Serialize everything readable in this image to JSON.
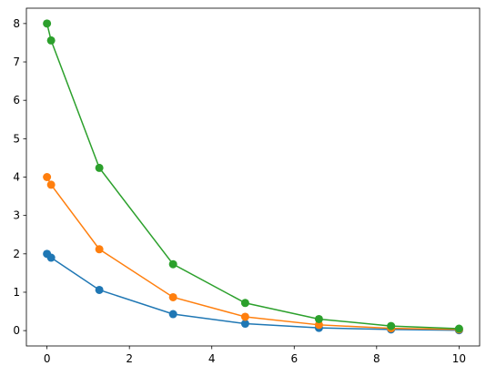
{
  "chart_data": {
    "type": "line",
    "x": [
      0,
      0.1,
      1.27,
      3.06,
      4.81,
      6.6,
      8.35,
      10
    ],
    "series": [
      {
        "color": "#1f77b4",
        "values": [
          2,
          1.9,
          1.06,
          0.43,
          0.18,
          0.07,
          0.03,
          0.01
        ]
      },
      {
        "color": "#ff7f0e",
        "values": [
          4,
          3.8,
          2.12,
          0.87,
          0.36,
          0.15,
          0.06,
          0.03
        ]
      },
      {
        "color": "#2ca02c",
        "values": [
          8,
          7.56,
          4.24,
          1.73,
          0.72,
          0.3,
          0.12,
          0.05
        ]
      }
    ],
    "xlim": [
      -0.5,
      10.5
    ],
    "xticks": [
      0,
      2,
      4,
      6,
      8,
      10
    ],
    "ylim": [
      -0.4,
      8.4
    ],
    "yticks": [
      0,
      1,
      2,
      3,
      4,
      5,
      6,
      7,
      8
    ],
    "markers": true,
    "grid": false
  }
}
